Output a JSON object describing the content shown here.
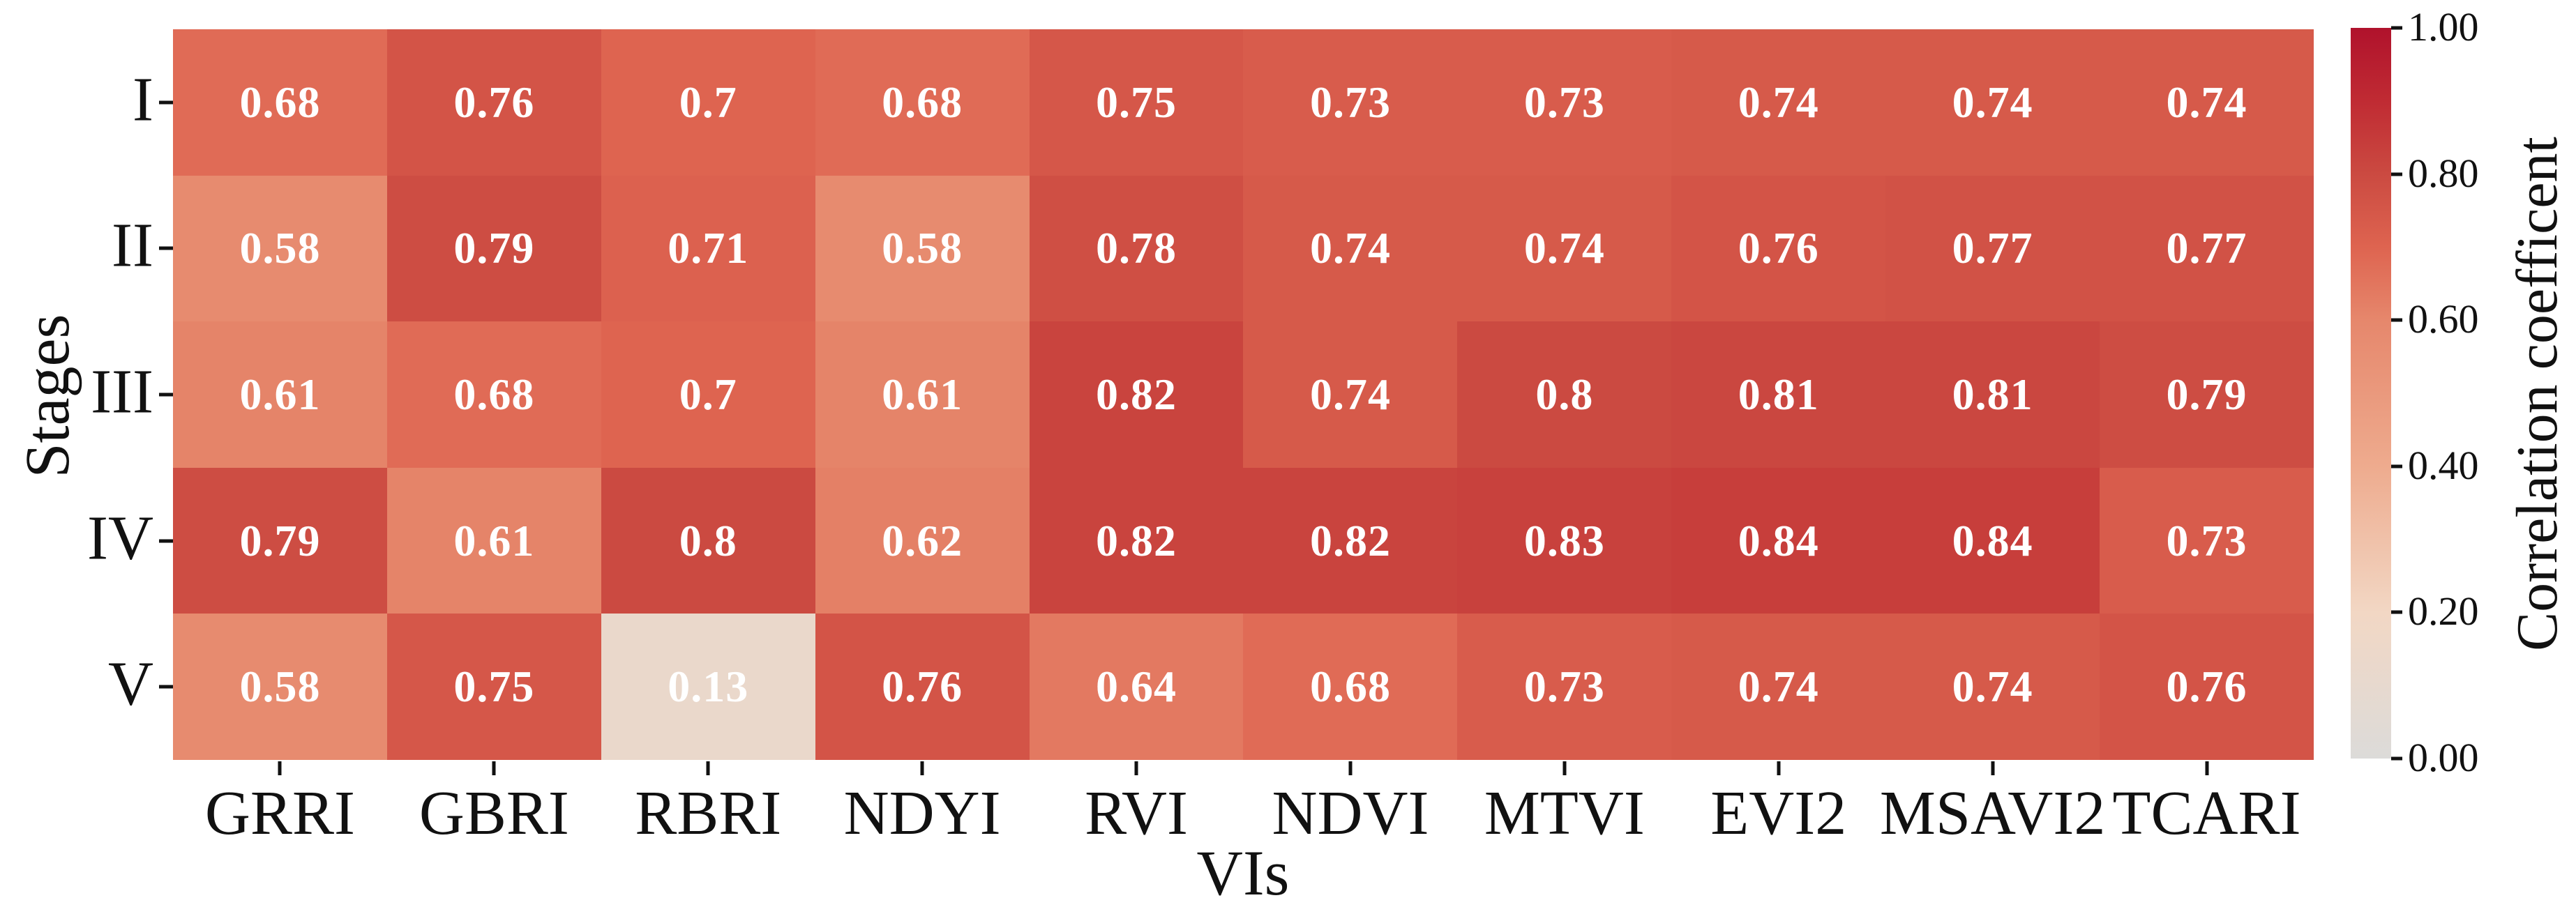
{
  "chart_data": {
    "type": "heatmap",
    "title": "",
    "xlabel": "VIs",
    "ylabel": "Stages",
    "x_categories": [
      "GRRI",
      "GBRI",
      "RBRI",
      "NDYI",
      "RVI",
      "NDVI",
      "MTVI",
      "EVI2",
      "MSAVI2",
      "TCARI"
    ],
    "y_categories": [
      "I",
      "II",
      "III",
      "IV",
      "V"
    ],
    "values": [
      [
        0.68,
        0.76,
        0.7,
        0.68,
        0.75,
        0.73,
        0.73,
        0.74,
        0.74,
        0.74
      ],
      [
        0.58,
        0.79,
        0.71,
        0.58,
        0.78,
        0.74,
        0.74,
        0.76,
        0.77,
        0.77
      ],
      [
        0.61,
        0.68,
        0.7,
        0.61,
        0.82,
        0.74,
        0.8,
        0.81,
        0.81,
        0.79
      ],
      [
        0.79,
        0.61,
        0.8,
        0.62,
        0.82,
        0.82,
        0.83,
        0.84,
        0.84,
        0.73
      ],
      [
        0.58,
        0.75,
        0.13,
        0.76,
        0.64,
        0.68,
        0.73,
        0.74,
        0.74,
        0.76
      ]
    ],
    "value_label_color": "#ffffff",
    "grid": false,
    "colorbar": {
      "label": "Correlation coefficent",
      "tick_labels": [
        "1.00",
        "0.80",
        "0.60",
        "0.40",
        "0.20",
        "0.00"
      ],
      "tick_values": [
        1.0,
        0.8,
        0.6,
        0.4,
        0.2,
        0.0
      ],
      "range": [
        0.0,
        1.0
      ],
      "position": "right",
      "colormap_stops": [
        [
          0.0,
          "#dcdbd9"
        ],
        [
          0.2,
          "#f2d7c4"
        ],
        [
          0.4,
          "#eeab8e"
        ],
        [
          0.6,
          "#e6876c"
        ],
        [
          0.7,
          "#de6450"
        ],
        [
          0.8,
          "#cb4a41"
        ],
        [
          0.9,
          "#c02b33"
        ],
        [
          1.0,
          "#b0122c"
        ]
      ]
    }
  }
}
